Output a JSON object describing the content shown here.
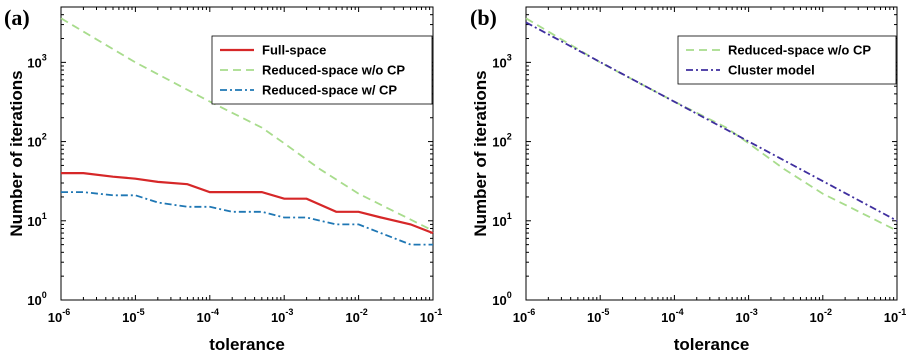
{
  "chart_data": [
    {
      "type": "line",
      "panel_label": "(a)",
      "xlabel": "tolerance",
      "ylabel": "Number of iterations",
      "xscale": "log",
      "yscale": "log",
      "xlim": [
        1e-06,
        0.1
      ],
      "ylim": [
        1,
        5000
      ],
      "x_ticks": [
        {
          "base": "10",
          "exp": "-6"
        },
        {
          "base": "10",
          "exp": "-5"
        },
        {
          "base": "10",
          "exp": "-4"
        },
        {
          "base": "10",
          "exp": "-3"
        },
        {
          "base": "10",
          "exp": "-2"
        },
        {
          "base": "10",
          "exp": "-1"
        }
      ],
      "y_ticks": [
        {
          "base": "10",
          "exp": "0"
        },
        {
          "base": "10",
          "exp": "1"
        },
        {
          "base": "10",
          "exp": "2"
        },
        {
          "base": "10",
          "exp": "3"
        }
      ],
      "grid": false,
      "legend_position": "top-right",
      "series": [
        {
          "name": "Full-space",
          "color": "#d62728",
          "style": "solid",
          "x": [
            1e-06,
            2e-06,
            5e-06,
            1e-05,
            2e-05,
            5e-05,
            0.0001,
            0.0002,
            0.0005,
            0.001,
            0.002,
            0.005,
            0.01,
            0.02,
            0.05,
            0.1
          ],
          "y": [
            40,
            40,
            36,
            34,
            31,
            29,
            23,
            23,
            23,
            19,
            19,
            13,
            13,
            11,
            9,
            7
          ]
        },
        {
          "name": "Reduced-space w/o CP",
          "color": "#a8dc8c",
          "style": "dashed",
          "x": [
            1e-06,
            1e-05,
            0.0001,
            0.0005,
            0.001,
            0.003,
            0.01,
            0.1
          ],
          "y": [
            3600,
            1000,
            320,
            150,
            95,
            45,
            22,
            7.5
          ]
        },
        {
          "name": "Reduced-space w/ CP",
          "color": "#1f77b4",
          "style": "dashdot",
          "x": [
            1e-06,
            2e-06,
            5e-06,
            1e-05,
            2e-05,
            5e-05,
            0.0001,
            0.0002,
            0.0005,
            0.001,
            0.002,
            0.005,
            0.01,
            0.02,
            0.05,
            0.1
          ],
          "y": [
            23,
            23,
            21,
            21,
            17,
            15,
            15,
            13,
            13,
            11,
            11,
            9,
            9,
            7,
            5,
            5
          ]
        }
      ]
    },
    {
      "type": "line",
      "panel_label": "(b)",
      "xlabel": "tolerance",
      "ylabel": "Number of iterations",
      "xscale": "log",
      "yscale": "log",
      "xlim": [
        1e-06,
        0.1
      ],
      "ylim": [
        1,
        5000
      ],
      "x_ticks": [
        {
          "base": "10",
          "exp": "-6"
        },
        {
          "base": "10",
          "exp": "-5"
        },
        {
          "base": "10",
          "exp": "-4"
        },
        {
          "base": "10",
          "exp": "-3"
        },
        {
          "base": "10",
          "exp": "-2"
        },
        {
          "base": "10",
          "exp": "-1"
        }
      ],
      "y_ticks": [
        {
          "base": "10",
          "exp": "0"
        },
        {
          "base": "10",
          "exp": "1"
        },
        {
          "base": "10",
          "exp": "2"
        },
        {
          "base": "10",
          "exp": "3"
        }
      ],
      "grid": false,
      "legend_position": "top-right",
      "series": [
        {
          "name": "Reduced-space w/o CP",
          "color": "#a8dc8c",
          "style": "dashed",
          "x": [
            1e-06,
            1e-05,
            0.0001,
            0.0005,
            0.001,
            0.003,
            0.01,
            0.1
          ],
          "y": [
            3600,
            1000,
            320,
            150,
            95,
            45,
            22,
            7.5
          ]
        },
        {
          "name": "Cluster model",
          "color": "#3f2f9f",
          "style": "dashdot",
          "x": [
            1e-06,
            0.1
          ],
          "y": [
            3200,
            10
          ]
        }
      ]
    }
  ]
}
